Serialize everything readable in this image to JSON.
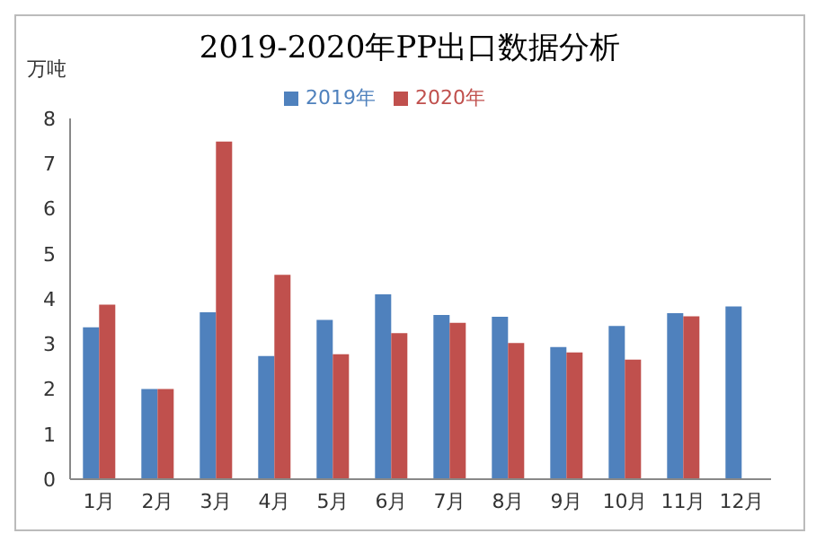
{
  "chart_data": {
    "type": "bar",
    "title": "2019-2020年PP出口数据分析",
    "ylabel": "万吨",
    "categories": [
      "1月",
      "2月",
      "3月",
      "4月",
      "5月",
      "6月",
      "7月",
      "8月",
      "9月",
      "10月",
      "11月",
      "12月"
    ],
    "series": [
      {
        "name": "2019年",
        "color": "#4f81bd",
        "values": [
          3.37,
          2.0,
          3.7,
          2.73,
          3.53,
          4.1,
          3.64,
          3.6,
          2.93,
          3.4,
          3.68,
          3.83
        ]
      },
      {
        "name": "2020年",
        "color": "#c0504d",
        "values": [
          3.87,
          2.0,
          7.49,
          4.53,
          2.77,
          3.24,
          3.47,
          3.02,
          2.81,
          2.65,
          3.61,
          null
        ]
      }
    ],
    "ylim": [
      0,
      8
    ],
    "yticks": [
      0,
      1,
      2,
      3,
      4,
      5,
      6,
      7,
      8
    ],
    "grid": false,
    "legend": "top"
  }
}
